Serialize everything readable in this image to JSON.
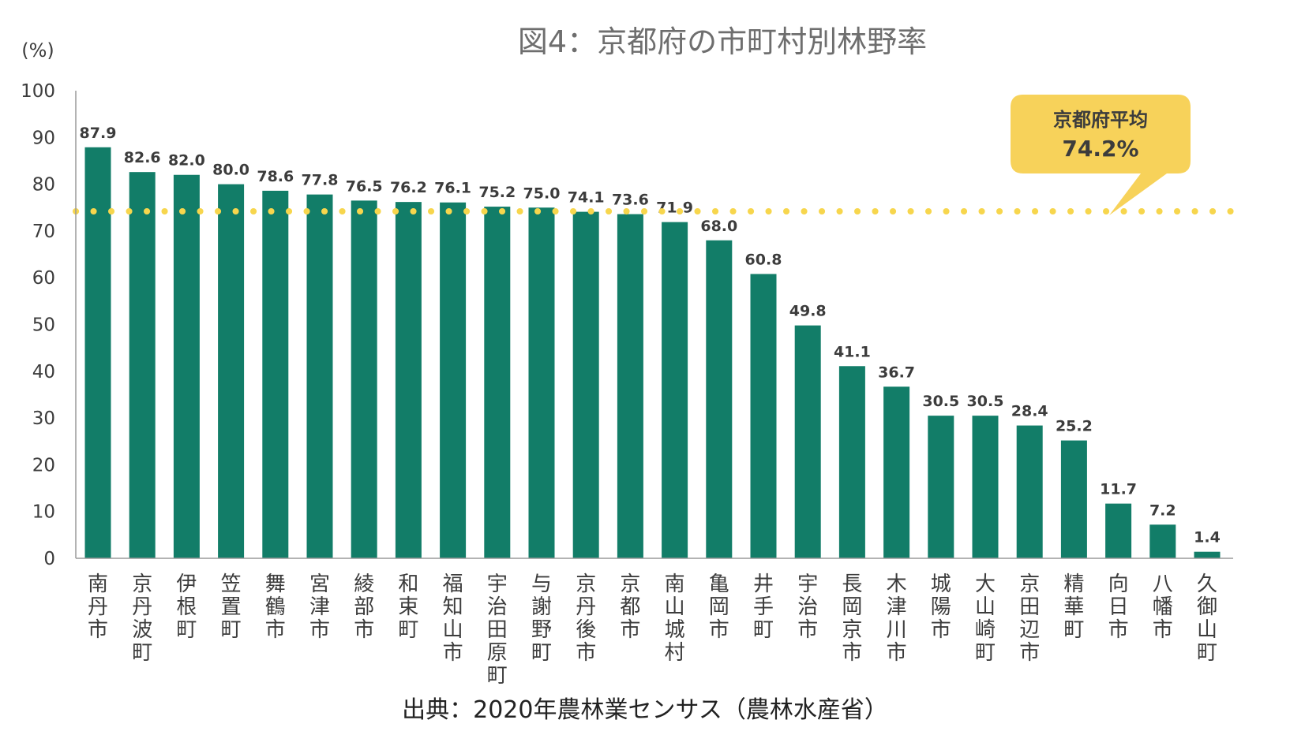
{
  "chart_data": {
    "type": "bar",
    "title": "図4：京都府の市町村別林野率",
    "ylabel": "(%)",
    "ylim": [
      0,
      100
    ],
    "yticks": [
      0,
      10,
      20,
      30,
      40,
      50,
      60,
      70,
      80,
      90,
      100
    ],
    "categories": [
      "南丹市",
      "京丹波町",
      "伊根町",
      "笠置町",
      "舞鶴市",
      "宮津市",
      "綾部市",
      "和束町",
      "福知山市",
      "宇治田原町",
      "与謝野町",
      "京丹後市",
      "京都市",
      "南山城村",
      "亀岡市",
      "井手町",
      "宇治市",
      "長岡京市",
      "木津川市",
      "城陽市",
      "大山崎町",
      "京田辺市",
      "精華町",
      "向日市",
      "八幡市",
      "久御山町"
    ],
    "values": [
      87.9,
      82.6,
      82.0,
      80.0,
      78.6,
      77.8,
      76.5,
      76.2,
      76.1,
      75.2,
      75.0,
      74.1,
      73.6,
      71.9,
      68.0,
      60.8,
      49.8,
      41.1,
      36.7,
      30.5,
      30.5,
      28.4,
      25.2,
      11.7,
      7.2,
      1.4
    ],
    "value_labels": [
      "87.9",
      "82.6",
      "82.0",
      "80.0",
      "78.6",
      "77.8",
      "76.5",
      "76.2",
      "76.1",
      "75.2",
      "75.0",
      "74.1",
      "73.6",
      "71.9",
      "68.0",
      "60.8",
      "49.8",
      "41.1",
      "36.7",
      "30.5",
      "30.5",
      "28.4",
      "25.2",
      "11.7",
      "7.2",
      "1.4"
    ],
    "average": {
      "label": "京都府平均",
      "value": 74.2,
      "value_label": "74.2%"
    },
    "source": "出典：2020年農林業センサス（農林水産省）",
    "grid": false,
    "colors": {
      "bar": "#127d68",
      "average_line": "#f7d64d",
      "callout": "#f7d25a"
    }
  }
}
